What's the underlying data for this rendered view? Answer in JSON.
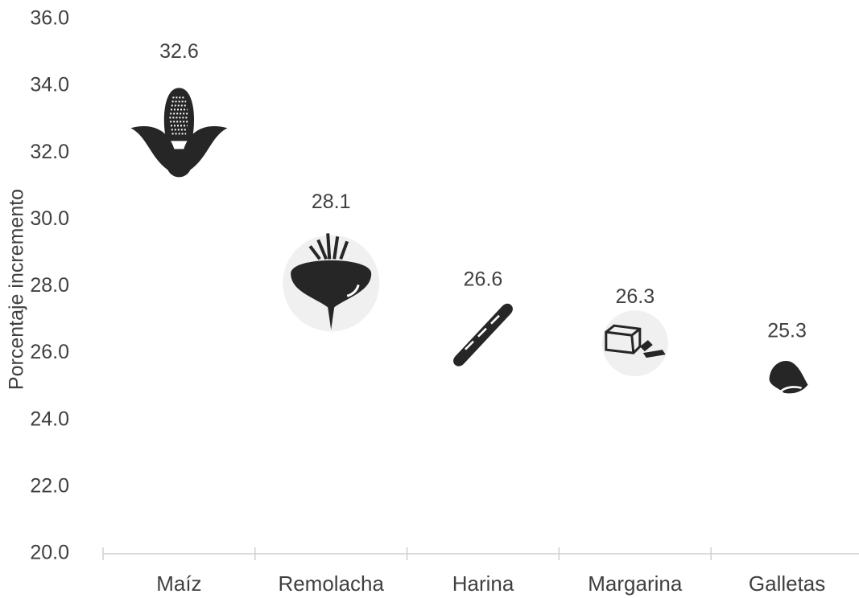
{
  "chart_data": {
    "type": "pictograph",
    "y_label": "Porcentaje incremento",
    "categories": [
      "Maíz",
      "Remolacha",
      "Harina",
      "Margarina",
      "Galletas"
    ],
    "values": [
      32.6,
      28.1,
      26.6,
      26.3,
      25.3
    ],
    "color": "#262626",
    "ylim": [
      20,
      36
    ],
    "yticks": [
      {
        "value": 20,
        "label": "20.0"
      },
      {
        "value": 22,
        "label": "22.0"
      },
      {
        "value": 24,
        "label": "24.0"
      },
      {
        "value": 26,
        "label": "26.0"
      },
      {
        "value": 28,
        "label": "28.0"
      },
      {
        "value": 30,
        "label": "30.0"
      },
      {
        "value": 32,
        "label": "32.0"
      },
      {
        "value": 34,
        "label": "34.0"
      },
      {
        "value": 36,
        "label": "36.0"
      }
    ],
    "grid": false
  }
}
